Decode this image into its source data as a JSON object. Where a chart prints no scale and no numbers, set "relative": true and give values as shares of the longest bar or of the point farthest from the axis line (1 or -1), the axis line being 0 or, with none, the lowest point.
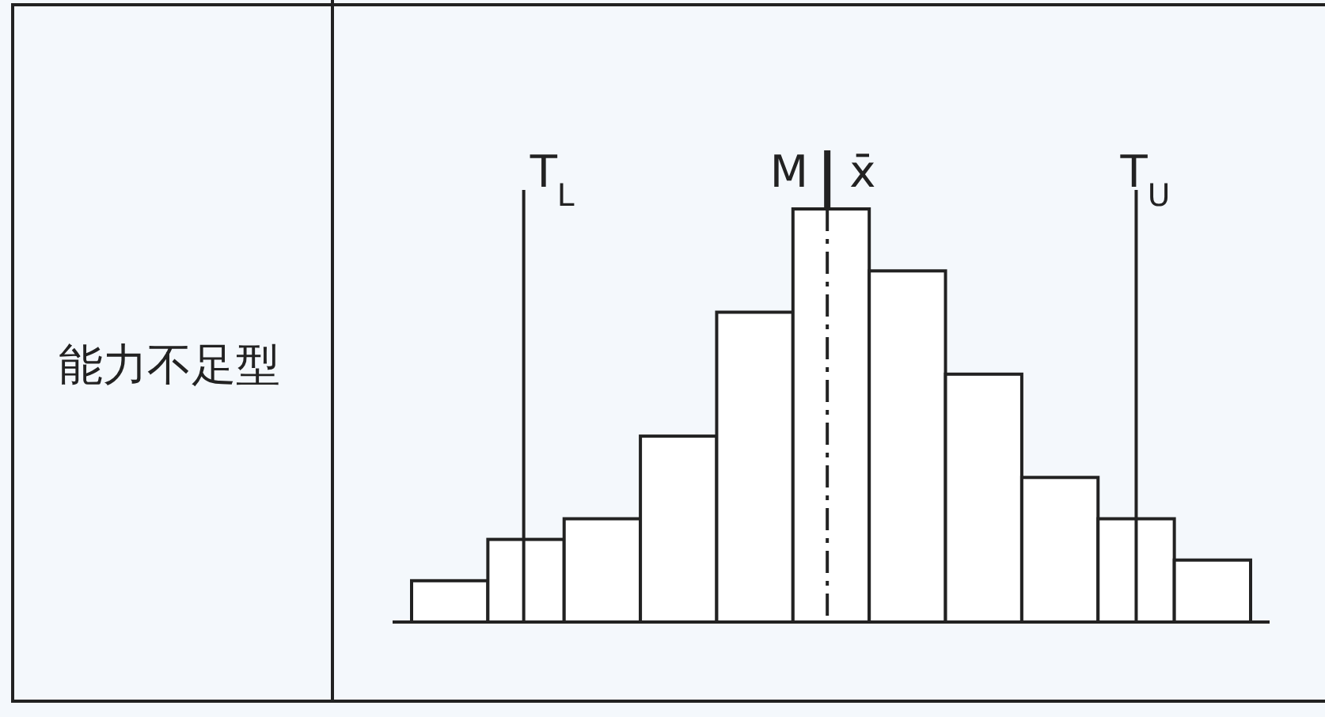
{
  "chart_data": {
    "type": "bar",
    "relative": true,
    "categories": [
      null,
      null,
      null,
      null,
      null,
      null,
      null,
      null,
      null,
      null,
      null
    ],
    "values": [
      0.1,
      0.2,
      0.25,
      0.45,
      0.75,
      1,
      0.85,
      0.6,
      0.35,
      0.25,
      0.15
    ],
    "color": "#ffffff",
    "annotations": [
      "能力不足型",
      "T$_{L}$",
      "M",
      "x̄",
      "T$_{U}$"
    ]
  }
}
